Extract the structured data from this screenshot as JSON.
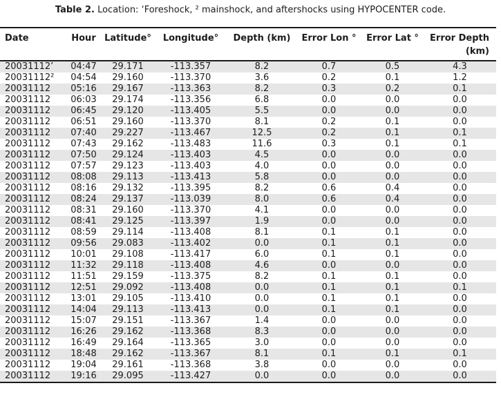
{
  "caption": {
    "label": "Table 2.",
    "text": "Location: ‘Foreshock, ² mainshock, and aftershocks using HYPOCENTER code."
  },
  "table": {
    "columns": [
      "Date",
      "Hour",
      "Latitude°",
      "Longitude°",
      "Depth (km)",
      "Error Lon °",
      "Error Lat °",
      "Error Depth\n(km)"
    ],
    "rows": [
      [
        "20031112’",
        "04:47",
        "29.171",
        "-113.357",
        "8.2",
        "0.7",
        "0.5",
        "4.3"
      ],
      [
        "20031112²",
        "04:54",
        "29.160",
        "-113.370",
        "3.6",
        "0.2",
        "0.1",
        "1.2"
      ],
      [
        "20031112",
        "05:16",
        "29.167",
        "-113.363",
        "8.2",
        "0.3",
        "0.2",
        "0.1"
      ],
      [
        "20031112",
        "06:03",
        "29.174",
        "-113.356",
        "6.8",
        "0.0",
        "0.0",
        "0.0"
      ],
      [
        "20031112",
        "06:45",
        "29.120",
        "-113.405",
        "5.5",
        "0.0",
        "0.0",
        "0.0"
      ],
      [
        "20031112",
        "06:51",
        "29.160",
        "-113.370",
        "8.1",
        "0.2",
        "0.1",
        "0.0"
      ],
      [
        "20031112",
        "07:40",
        "29.227",
        "-113.467",
        "12.5",
        "0.2",
        "0.1",
        "0.1"
      ],
      [
        "20031112",
        "07:43",
        "29.162",
        "-113.483",
        "11.6",
        "0.3",
        "0.1",
        "0.1"
      ],
      [
        "20031112",
        "07:50",
        "29.124",
        "-113.403",
        "4.5",
        "0.0",
        "0.0",
        "0.0"
      ],
      [
        "20031112",
        "07:57",
        "29.123",
        "-113.403",
        "4.0",
        "0.0",
        "0.0",
        "0.0"
      ],
      [
        "20031112",
        "08:08",
        "29.113",
        "-113.413",
        "5.8",
        "0.0",
        "0.0",
        "0.0"
      ],
      [
        "20031112",
        "08:16",
        "29.132",
        "-113.395",
        "8.2",
        "0.6",
        "0.4",
        "0.0"
      ],
      [
        "20031112",
        "08:24",
        "29.137",
        "-113.039",
        "8.0",
        "0.6",
        "0.4",
        "0.0"
      ],
      [
        "20031112",
        "08:31",
        "29.160",
        "-113.370",
        "4.1",
        "0.0",
        "0.0",
        "0.0"
      ],
      [
        "20031112",
        "08:41",
        "29.125",
        "-113.397",
        "1.9",
        "0.0",
        "0.0",
        "0.0"
      ],
      [
        "20031112",
        "08:59",
        "29.114",
        "-113.408",
        "8.1",
        "0.1",
        "0.1",
        "0.0"
      ],
      [
        "20031112",
        "09:56",
        "29.083",
        "-113.402",
        "0.0",
        "0.1",
        "0.1",
        "0.0"
      ],
      [
        "20031112",
        "10:01",
        "29.108",
        "-113.417",
        "6.0",
        "0.1",
        "0.1",
        "0.0"
      ],
      [
        "20031112",
        "11:32",
        "29.118",
        "-113.408",
        "4.6",
        "0.0",
        "0.0",
        "0.0"
      ],
      [
        "20031112",
        "11:51",
        "29.159",
        "-113.375",
        "8.2",
        "0.1",
        "0.1",
        "0.0"
      ],
      [
        "20031112",
        "12:51",
        "29.092",
        "-113.408",
        "0.0",
        "0.1",
        "0.1",
        "0.1"
      ],
      [
        "20031112",
        "13:01",
        "29.105",
        "-113.410",
        "0.0",
        "0.1",
        "0.1",
        "0.0"
      ],
      [
        "20031112",
        "14:04",
        "29.113",
        "-113.413",
        "0.0",
        "0.1",
        "0.1",
        "0.0"
      ],
      [
        "20031112",
        "15:07",
        "29.151",
        "-113.367",
        "1.4",
        "0.0",
        "0.0",
        "0.0"
      ],
      [
        "20031112",
        "16:26",
        "29.162",
        "-113.368",
        "8.3",
        "0.0",
        "0.0",
        "0.0"
      ],
      [
        "20031112",
        "16:49",
        "29.164",
        "-113.365",
        "3.0",
        "0.0",
        "0.0",
        "0.0"
      ],
      [
        "20031112",
        "18:48",
        "29.162",
        "-113.367",
        "8.1",
        "0.1",
        "0.1",
        "0.1"
      ],
      [
        "20031112",
        "19:04",
        "29.161",
        "-113.368",
        "3.8",
        "0.0",
        "0.0",
        "0.0"
      ],
      [
        "20031112",
        "19:16",
        "29.095",
        "-113.427",
        "0.0",
        "0.0",
        "0.0",
        "0.0"
      ]
    ]
  }
}
